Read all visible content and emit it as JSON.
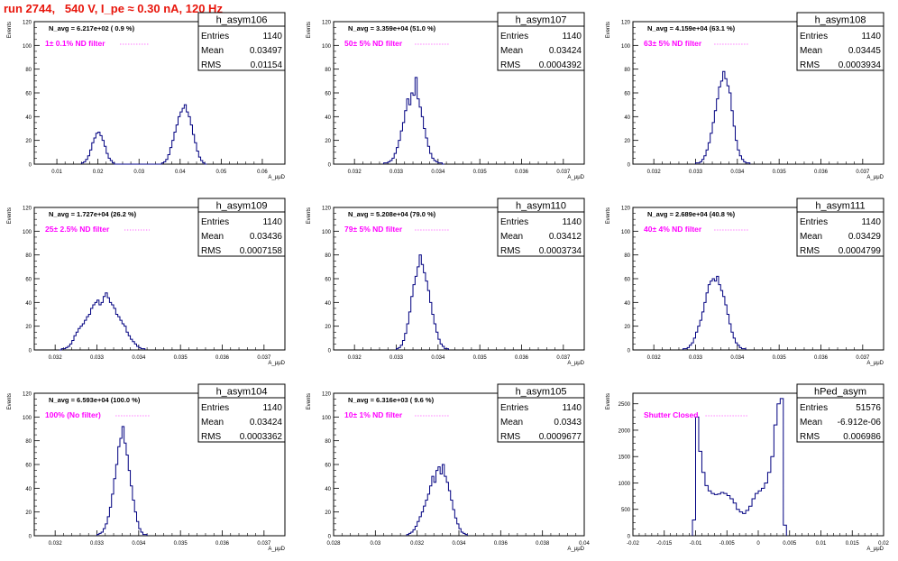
{
  "header": {
    "run_title": "run 2744,   540 V, I_pe ≈ 0.30 nA, 120 Hz"
  },
  "colors": {
    "title": "#e8160c",
    "annotation": "#ff00ff",
    "histogram": "#000080"
  },
  "chart_data": [
    {
      "type": "histogram",
      "name": "h_asym106",
      "ylabel": "Events",
      "xlabel": "A_μμD",
      "navg": "N_avg = 6.217e+02 ( 0.9 %)",
      "annotation": "1± 0.1% ND filter",
      "stats": {
        "entries": "1140",
        "mean": "0.03497",
        "rms": "0.01154"
      },
      "xlim": [
        0.0045,
        0.0655
      ],
      "ylim": [
        0,
        120
      ],
      "xticks": [
        "0.01",
        "0.02",
        "0.03",
        "0.04",
        "0.05",
        "0.06"
      ],
      "yticks": [
        0,
        20,
        40,
        60,
        80,
        100,
        120
      ],
      "bin_start": 0.016,
      "bin_width": 0.0005,
      "counts": [
        1,
        2,
        4,
        7,
        12,
        18,
        22,
        26,
        27,
        24,
        20,
        15,
        9,
        5,
        3,
        1,
        0,
        0,
        0,
        0,
        0,
        0,
        0,
        0,
        0,
        0,
        0,
        0,
        0,
        0,
        0,
        0,
        0,
        0,
        0,
        0,
        0,
        0,
        0,
        1,
        2,
        4,
        8,
        14,
        20,
        27,
        33,
        40,
        44,
        47,
        50,
        44,
        40,
        33,
        25,
        18,
        11,
        6,
        3,
        1,
        0
      ]
    },
    {
      "type": "histogram",
      "name": "h_asym107",
      "ylabel": "Events",
      "xlabel": "A_μμD",
      "navg": "N_avg = 3.359e+04 (51.0 %)",
      "annotation": "50± 5% ND filter",
      "stats": {
        "entries": "1140",
        "mean": "0.03424",
        "rms": "0.0004392"
      },
      "xlim": [
        0.0315,
        0.0375
      ],
      "ylim": [
        0,
        120
      ],
      "xticks": [
        "0.032",
        "0.033",
        "0.034",
        "0.035",
        "0.036",
        "0.037"
      ],
      "yticks": [
        0,
        20,
        40,
        60,
        80,
        100,
        120
      ],
      "bin_start": 0.0327,
      "bin_width": 5e-05,
      "counts": [
        1,
        1,
        2,
        3,
        5,
        9,
        14,
        20,
        28,
        35,
        45,
        55,
        50,
        60,
        58,
        73,
        55,
        48,
        40,
        30,
        22,
        15,
        9,
        5,
        3,
        2,
        1,
        1,
        0
      ]
    },
    {
      "type": "histogram",
      "name": "h_asym108",
      "ylabel": "Events",
      "xlabel": "A_μμD",
      "navg": "N_avg = 4.159e+04 (63.1 %)",
      "annotation": "63± 5% ND filter",
      "stats": {
        "entries": "1140",
        "mean": "0.03445",
        "rms": "0.0003934"
      },
      "xlim": [
        0.0315,
        0.0375
      ],
      "ylim": [
        0,
        120
      ],
      "xticks": [
        "0.032",
        "0.033",
        "0.034",
        "0.035",
        "0.036",
        "0.037"
      ],
      "yticks": [
        0,
        20,
        40,
        60,
        80,
        100,
        120
      ],
      "bin_start": 0.033,
      "bin_width": 5e-05,
      "counts": [
        1,
        1,
        2,
        4,
        7,
        12,
        18,
        26,
        35,
        45,
        55,
        65,
        70,
        78,
        72,
        66,
        60,
        45,
        32,
        20,
        12,
        7,
        4,
        2,
        1,
        1
      ]
    },
    {
      "type": "histogram",
      "name": "h_asym109",
      "ylabel": "Events",
      "xlabel": "A_μμD",
      "navg": "N_avg = 1.727e+04 (26.2 %)",
      "annotation": "25± 2.5% ND filter",
      "stats": {
        "entries": "1140",
        "mean": "0.03436",
        "rms": "0.0007158"
      },
      "xlim": [
        0.0315,
        0.0375
      ],
      "ylim": [
        0,
        120
      ],
      "xticks": [
        "0.032",
        "0.033",
        "0.034",
        "0.035",
        "0.036",
        "0.037"
      ],
      "yticks": [
        0,
        20,
        40,
        60,
        80,
        100,
        120
      ],
      "bin_start": 0.0321,
      "bin_width": 5e-05,
      "counts": [
        0,
        1,
        1,
        2,
        3,
        5,
        8,
        12,
        15,
        18,
        20,
        22,
        25,
        28,
        30,
        35,
        38,
        40,
        42,
        38,
        40,
        45,
        48,
        44,
        40,
        38,
        35,
        30,
        28,
        25,
        22,
        20,
        15,
        12,
        9,
        7,
        5,
        3,
        2,
        1,
        1
      ]
    },
    {
      "type": "histogram",
      "name": "h_asym110",
      "ylabel": "Events",
      "xlabel": "A_μμD",
      "navg": "N_avg = 5.208e+04 (79.0 %)",
      "annotation": "79± 5% ND filter",
      "stats": {
        "entries": "1140",
        "mean": "0.03412",
        "rms": "0.0003734"
      },
      "xlim": [
        0.0315,
        0.0375
      ],
      "ylim": [
        0,
        120
      ],
      "xticks": [
        "0.032",
        "0.033",
        "0.034",
        "0.035",
        "0.036",
        "0.037"
      ],
      "yticks": [
        0,
        20,
        40,
        60,
        80,
        100,
        120
      ],
      "bin_start": 0.033,
      "bin_width": 5e-05,
      "counts": [
        1,
        2,
        4,
        8,
        14,
        22,
        32,
        45,
        55,
        62,
        70,
        80,
        72,
        65,
        58,
        50,
        40,
        30,
        22,
        15,
        9,
        5,
        3,
        1,
        1
      ]
    },
    {
      "type": "histogram",
      "name": "h_asym111",
      "ylabel": "Events",
      "xlabel": "A_μμD",
      "navg": "N_avg = 2.689e+04 (40.8 %)",
      "annotation": "40± 4% ND filter",
      "stats": {
        "entries": "1140",
        "mean": "0.03429",
        "rms": "0.0004799"
      },
      "xlim": [
        0.0315,
        0.0375
      ],
      "ylim": [
        0,
        120
      ],
      "xticks": [
        "0.032",
        "0.033",
        "0.034",
        "0.035",
        "0.036",
        "0.037"
      ],
      "yticks": [
        0,
        20,
        40,
        60,
        80,
        100,
        120
      ],
      "bin_start": 0.0327,
      "bin_width": 5e-05,
      "counts": [
        1,
        1,
        2,
        4,
        6,
        10,
        15,
        20,
        25,
        32,
        40,
        48,
        55,
        58,
        60,
        58,
        62,
        55,
        50,
        45,
        38,
        30,
        22,
        15,
        10,
        6,
        4,
        2,
        1,
        1
      ]
    },
    {
      "type": "histogram",
      "name": "h_asym104",
      "ylabel": "Events",
      "xlabel": "A_μμD",
      "navg": "N_avg = 6.593e+04 (100.0 %)",
      "annotation": "100% (No filter)",
      "stats": {
        "entries": "1140",
        "mean": "0.03424",
        "rms": "0.0003362"
      },
      "xlim": [
        0.0315,
        0.0375
      ],
      "ylim": [
        0,
        120
      ],
      "xticks": [
        "0.032",
        "0.033",
        "0.034",
        "0.035",
        "0.036",
        "0.037"
      ],
      "yticks": [
        0,
        20,
        40,
        60,
        80,
        100,
        120
      ],
      "bin_start": 0.033,
      "bin_width": 5e-05,
      "counts": [
        1,
        2,
        3,
        6,
        10,
        16,
        24,
        35,
        48,
        60,
        75,
        82,
        92,
        78,
        68,
        55,
        42,
        30,
        20,
        12,
        6,
        3,
        1,
        1
      ]
    },
    {
      "type": "histogram",
      "name": "h_asym105",
      "ylabel": "Events",
      "xlabel": "A_μμD",
      "navg": "N_avg = 6.316e+03 ( 9.6 %)",
      "annotation": "10± 1% ND filter",
      "stats": {
        "entries": "1140",
        "mean": "0.0343",
        "rms": "0.0009677"
      },
      "xlim": [
        0.028,
        0.04
      ],
      "ylim": [
        0,
        120
      ],
      "xticks": [
        "0.028",
        "0.03",
        "0.032",
        "0.034",
        "0.036",
        "0.038",
        "0.04"
      ],
      "yticks": [
        0,
        20,
        40,
        60,
        80,
        100,
        120
      ],
      "bin_start": 0.0315,
      "bin_width": 0.0001,
      "counts": [
        1,
        2,
        3,
        5,
        8,
        12,
        16,
        20,
        25,
        30,
        35,
        42,
        50,
        45,
        55,
        58,
        52,
        60,
        50,
        45,
        38,
        30,
        22,
        15,
        10,
        6,
        3,
        2,
        1
      ]
    },
    {
      "type": "histogram",
      "name": "hPed_asym",
      "ylabel": "Events",
      "xlabel": "A_μμD",
      "navg": "",
      "annotation": "Shutter Closed",
      "stats": {
        "entries": "51576",
        "mean": "-6.912e-06",
        "rms": "0.006986"
      },
      "xlim": [
        -0.02,
        0.02
      ],
      "ylim": [
        0,
        2700
      ],
      "xticks": [
        "-0.02",
        "-0.015",
        "-0.01",
        "-0.005",
        "0",
        "0.005",
        "0.01",
        "0.015",
        "0.02"
      ],
      "yticks": [
        0,
        500,
        1000,
        1500,
        2000,
        2500
      ],
      "bin_start": -0.0105,
      "bin_width": 0.0005,
      "counts": [
        300,
        2250,
        1600,
        1200,
        950,
        850,
        800,
        780,
        790,
        820,
        800,
        760,
        700,
        620,
        500,
        450,
        420,
        480,
        560,
        700,
        800,
        850,
        900,
        1000,
        1200,
        1500,
        2100,
        2500,
        2600,
        200
      ]
    }
  ]
}
